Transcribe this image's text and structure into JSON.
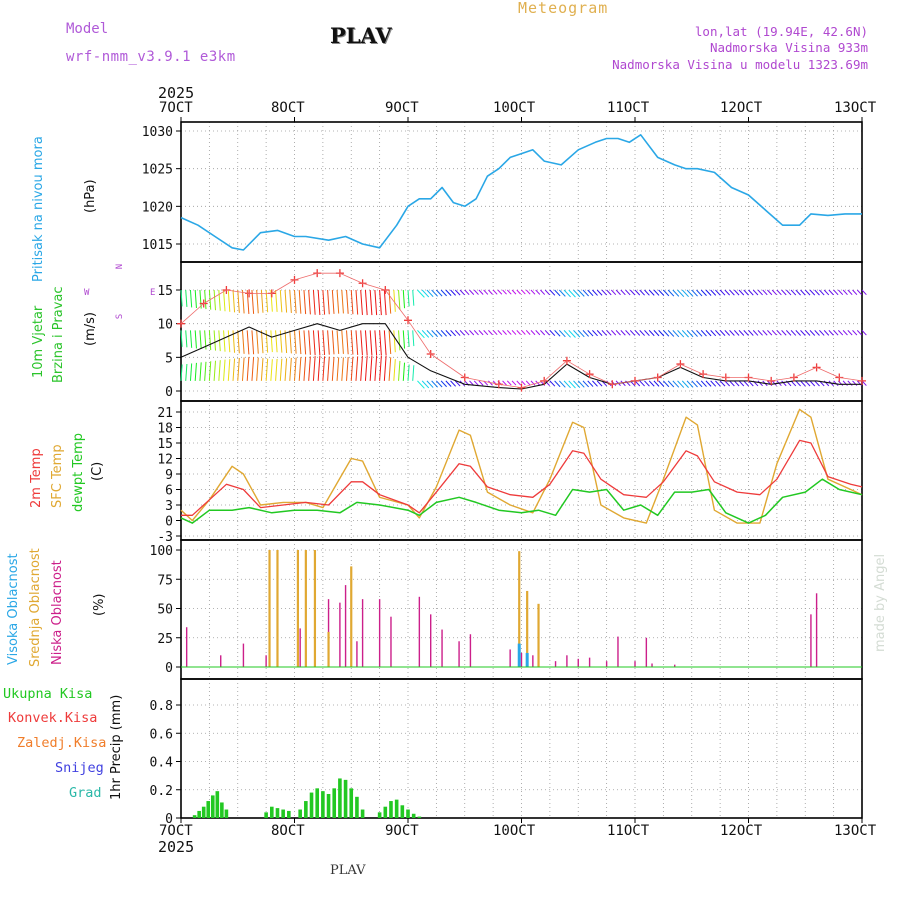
{
  "header": {
    "model_label": "Model",
    "model_name": "wrf-nmm_v3.9.1 e3km",
    "station": "PLAV",
    "meteogram": "Meteogram",
    "lonlat": "lon,lat (19.94E, 42.6N)",
    "altitude": "Nadmorska Visina 933m",
    "model_altitude": "Nadmorska Visina u modelu 1323.69m",
    "year_top": "2025",
    "year_bottom": "2025",
    "footer_station": "PLAV",
    "credit": "made by Angel"
  },
  "colors": {
    "pressure": "#2aa7e6",
    "wind_label": "#2bc42b",
    "temp2m": "#ee3b3b",
    "sfc": "#e0a832",
    "dewpt": "#22c822",
    "visoka": "#2aa7e6",
    "srednja": "#e0a832",
    "niska": "#cc1f8a",
    "ukupna": "#22c822",
    "konvek": "#ee3b3b",
    "zaledj": "#f07d2a",
    "snijeg": "#4141e0",
    "grad": "#2ab8a8",
    "model": "#b05ad8",
    "meteogram": "#e0b050",
    "legend": "#b048d0"
  },
  "chart_data": [
    {
      "type": "line",
      "panel": "pressure",
      "title_lines": [
        "Pritisak na nivou mora"
      ],
      "ylabel": "(hPa)",
      "ylim": [
        1012.5,
        1031
      ],
      "yticks": [
        1015,
        1020,
        1025,
        1030
      ],
      "x_range_days": [
        7,
        13
      ],
      "x_ticks": [
        "7OCT",
        "8OCT",
        "9OCT",
        "10OCT",
        "11OCT",
        "12OCT",
        "13OCT"
      ],
      "series": [
        {
          "name": "MSLP",
          "x": [
            7.0,
            7.15,
            7.3,
            7.45,
            7.55,
            7.7,
            7.85,
            8.0,
            8.1,
            8.3,
            8.45,
            8.6,
            8.75,
            8.9,
            9.0,
            9.1,
            9.2,
            9.3,
            9.4,
            9.5,
            9.6,
            9.7,
            9.8,
            9.9,
            10.0,
            10.1,
            10.2,
            10.35,
            10.5,
            10.65,
            10.75,
            10.85,
            10.95,
            11.05,
            11.2,
            11.35,
            11.45,
            11.55,
            11.7,
            11.85,
            12.0,
            12.15,
            12.3,
            12.45,
            12.55,
            12.7,
            12.85,
            13.0
          ],
          "y": [
            1018.5,
            1017.5,
            1016.0,
            1014.5,
            1014.2,
            1016.5,
            1016.8,
            1016.0,
            1016.0,
            1015.5,
            1016.0,
            1015.0,
            1014.5,
            1017.5,
            1020.0,
            1021.0,
            1021.0,
            1022.5,
            1020.5,
            1020.0,
            1021.0,
            1024.0,
            1025.0,
            1026.5,
            1027.0,
            1027.5,
            1026.0,
            1025.5,
            1027.5,
            1028.5,
            1029.0,
            1029.0,
            1028.5,
            1029.5,
            1026.5,
            1025.5,
            1025.0,
            1025.0,
            1024.5,
            1022.5,
            1021.5,
            1019.5,
            1017.5,
            1017.5,
            1019.0,
            1018.8,
            1019.0,
            1019.0
          ]
        }
      ]
    },
    {
      "type": "line",
      "panel": "wind",
      "title_lines": [
        "10m Vjetar",
        "Brzina i Pravac"
      ],
      "ylabel": "(m/s)",
      "compass": [
        "N",
        "S",
        "W",
        "E"
      ],
      "ylim": [
        -1.0,
        19.0
      ],
      "yticks": [
        0,
        5,
        10,
        15
      ],
      "series": [
        {
          "name": "speed",
          "x": [
            7.0,
            7.2,
            7.4,
            7.6,
            7.8,
            8.0,
            8.2,
            8.4,
            8.6,
            8.8,
            9.0,
            9.2,
            9.5,
            9.8,
            10.0,
            10.2,
            10.4,
            10.6,
            10.8,
            11.0,
            11.2,
            11.4,
            11.6,
            11.8,
            12.0,
            12.2,
            12.4,
            12.6,
            12.8,
            13.0
          ],
          "y": [
            5.0,
            6.5,
            8.0,
            9.5,
            8.0,
            9.0,
            10.0,
            9.0,
            10.0,
            10.0,
            5.0,
            3.0,
            1.0,
            0.5,
            0.3,
            1.0,
            4.0,
            2.0,
            1.0,
            1.5,
            2.0,
            3.5,
            2.0,
            1.5,
            1.5,
            1.0,
            1.5,
            1.5,
            1.0,
            1.0
          ]
        },
        {
          "name": "gust",
          "x": [
            7.0,
            7.2,
            7.4,
            7.6,
            7.8,
            8.0,
            8.2,
            8.4,
            8.6,
            8.8,
            9.0,
            9.2,
            9.5,
            9.8,
            10.0,
            10.2,
            10.4,
            10.6,
            10.8,
            11.0,
            11.2,
            11.4,
            11.6,
            11.8,
            12.0,
            12.2,
            12.4,
            12.6,
            12.8,
            13.0
          ],
          "y": [
            10.0,
            13.0,
            15.0,
            14.5,
            14.5,
            16.5,
            17.5,
            17.5,
            16.0,
            15.0,
            10.5,
            5.5,
            2.0,
            1.0,
            0.5,
            1.5,
            4.5,
            2.5,
            1.0,
            1.5,
            2.0,
            4.0,
            2.5,
            2.0,
            2.0,
            1.5,
            2.0,
            3.5,
            2.0,
            1.5
          ]
        }
      ]
    },
    {
      "type": "line",
      "panel": "temperature",
      "title_lines": [
        "2m Temp",
        "SFC Temp",
        "dewpt Temp"
      ],
      "ylabel": "(C)",
      "ylim": [
        -3,
        23
      ],
      "yticks": [
        -3,
        0,
        3,
        6,
        9,
        12,
        15,
        18,
        21
      ],
      "series": [
        {
          "name": "2m Temp",
          "x": [
            7.0,
            7.1,
            7.25,
            7.4,
            7.55,
            7.7,
            7.9,
            8.1,
            8.3,
            8.5,
            8.6,
            8.75,
            9.0,
            9.1,
            9.25,
            9.45,
            9.55,
            9.7,
            9.9,
            10.1,
            10.25,
            10.45,
            10.55,
            10.7,
            10.9,
            11.1,
            11.25,
            11.45,
            11.55,
            11.7,
            11.9,
            12.1,
            12.25,
            12.45,
            12.55,
            12.7,
            12.9,
            13.0
          ],
          "y": [
            1.0,
            1.0,
            4.0,
            7.0,
            6.0,
            2.5,
            3.0,
            3.5,
            3.0,
            7.5,
            7.5,
            5.0,
            3.0,
            1.5,
            5.5,
            11.0,
            10.5,
            6.5,
            5.0,
            4.5,
            7.0,
            13.5,
            13.0,
            8.0,
            5.0,
            4.5,
            7.5,
            13.5,
            12.5,
            7.5,
            5.5,
            5.0,
            8.0,
            15.5,
            15.0,
            8.5,
            7.0,
            6.5
          ]
        },
        {
          "name": "SFC Temp",
          "x": [
            7.0,
            7.1,
            7.25,
            7.45,
            7.55,
            7.7,
            7.9,
            8.1,
            8.25,
            8.5,
            8.6,
            8.75,
            9.0,
            9.1,
            9.25,
            9.45,
            9.55,
            9.7,
            9.9,
            10.1,
            10.25,
            10.45,
            10.55,
            10.7,
            10.9,
            11.1,
            11.25,
            11.45,
            11.55,
            11.7,
            11.9,
            12.1,
            12.25,
            12.45,
            12.55,
            12.7,
            12.9,
            13.0
          ],
          "y": [
            2.0,
            0.0,
            4.0,
            10.5,
            9.0,
            3.0,
            3.5,
            3.5,
            2.5,
            12.0,
            11.5,
            4.5,
            3.0,
            0.5,
            6.5,
            17.5,
            16.5,
            5.5,
            3.0,
            1.5,
            8.0,
            19.0,
            18.0,
            3.0,
            0.5,
            -0.5,
            8.0,
            20.0,
            18.5,
            2.0,
            -0.5,
            -0.5,
            11.0,
            21.5,
            20.0,
            8.0,
            6.0,
            5.0
          ]
        },
        {
          "name": "dewpt Temp",
          "x": [
            7.0,
            7.1,
            7.25,
            7.45,
            7.6,
            7.8,
            8.0,
            8.2,
            8.4,
            8.55,
            8.75,
            9.0,
            9.1,
            9.25,
            9.45,
            9.6,
            9.8,
            10.0,
            10.15,
            10.3,
            10.45,
            10.6,
            10.75,
            10.9,
            11.05,
            11.2,
            11.35,
            11.5,
            11.65,
            11.8,
            12.0,
            12.15,
            12.3,
            12.5,
            12.65,
            12.8,
            13.0
          ],
          "y": [
            0.5,
            -0.5,
            2.0,
            2.0,
            2.5,
            1.5,
            2.0,
            2.0,
            1.5,
            3.5,
            3.0,
            2.0,
            1.0,
            3.5,
            4.5,
            3.5,
            2.0,
            1.5,
            2.0,
            1.0,
            6.0,
            5.5,
            6.0,
            2.0,
            3.0,
            1.0,
            5.5,
            5.5,
            6.0,
            1.5,
            -0.5,
            1.0,
            4.5,
            5.5,
            8.0,
            6.0,
            5.0
          ]
        }
      ]
    },
    {
      "type": "bar",
      "panel": "cloud",
      "title_lines": [
        "Visoka Oblacnost",
        "Srednja Oblacnost",
        "Niska Oblacnost"
      ],
      "ylabel": "(%)",
      "ylim": [
        0,
        100
      ],
      "yticks": [
        0,
        25,
        50,
        75,
        100
      ],
      "series": [
        {
          "name": "Niska",
          "x": [
            7.05,
            7.35,
            7.55,
            7.75,
            7.85,
            8.05,
            8.1,
            8.3,
            8.4,
            8.45,
            8.55,
            8.6,
            8.75,
            8.85,
            9.1,
            9.2,
            9.3,
            9.45,
            9.55,
            9.9,
            10.0,
            10.1,
            10.3,
            10.4,
            10.5,
            10.6,
            10.75,
            10.85,
            11.0,
            11.1,
            11.15,
            11.35,
            12.55,
            12.6
          ],
          "y": [
            34,
            10,
            20,
            10,
            58,
            33,
            35,
            58,
            55,
            70,
            22,
            58,
            58,
            43,
            60,
            45,
            32,
            22,
            28,
            15,
            12,
            10,
            5,
            10,
            7,
            8,
            5,
            26,
            5,
            25,
            3,
            2,
            45,
            63
          ]
        },
        {
          "name": "Srednja",
          "x": [
            7.78,
            7.85,
            8.03,
            8.1,
            8.18,
            8.3,
            8.5,
            9.98,
            10.05,
            10.15
          ],
          "y": [
            100,
            100,
            100,
            100,
            100,
            30,
            86,
            99,
            65,
            54
          ]
        },
        {
          "name": "Visoka",
          "x": [
            9.98,
            10.05
          ],
          "y": [
            20,
            12
          ]
        }
      ]
    },
    {
      "type": "bar",
      "panel": "precipitation",
      "title_lines": [
        "Ukupna Kisa",
        "Konvek.Kisa",
        "Zaledj.Kisa",
        "Snijeg",
        "Grad"
      ],
      "ylabel": "1hr Precip (mm)",
      "ylim": [
        0,
        1.0
      ],
      "yticks": [
        0,
        0.2,
        0.4,
        0.6,
        0.8
      ],
      "x_ticks": [
        "7OCT",
        "8OCT",
        "9OCT",
        "10OCT",
        "11OCT",
        "12OCT",
        "13OCT"
      ],
      "series": [
        {
          "name": "Ukupna Kisa",
          "x": [
            7.12,
            7.16,
            7.2,
            7.24,
            7.28,
            7.32,
            7.36,
            7.4,
            7.75,
            7.8,
            7.85,
            7.9,
            7.95,
            8.05,
            8.1,
            8.15,
            8.2,
            8.25,
            8.3,
            8.35,
            8.4,
            8.45,
            8.5,
            8.55,
            8.6,
            8.75,
            8.8,
            8.85,
            8.9,
            8.95,
            9.0,
            9.05,
            9.1
          ],
          "y": [
            0.02,
            0.05,
            0.08,
            0.12,
            0.16,
            0.19,
            0.11,
            0.06,
            0.04,
            0.08,
            0.07,
            0.06,
            0.05,
            0.06,
            0.12,
            0.18,
            0.21,
            0.19,
            0.17,
            0.21,
            0.28,
            0.27,
            0.21,
            0.15,
            0.06,
            0.04,
            0.08,
            0.12,
            0.13,
            0.09,
            0.06,
            0.03,
            0.01
          ]
        }
      ]
    }
  ]
}
